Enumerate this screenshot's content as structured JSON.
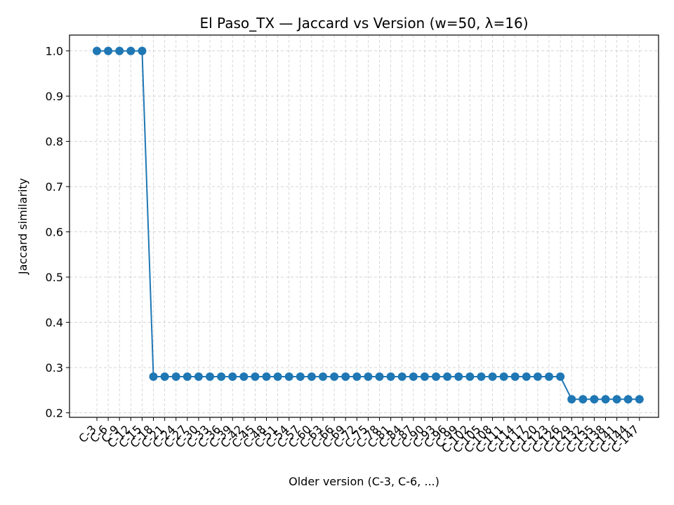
{
  "chart_data": {
    "type": "line",
    "title": "El Paso_TX — Jaccard vs Version (w=50, λ=16)",
    "xlabel": "Older version (C-3, C-6, ...)",
    "ylabel": "Jaccard similarity",
    "ylim": [
      0.19,
      1.035
    ],
    "yticks": [
      0.2,
      0.3,
      0.4,
      0.5,
      0.6,
      0.7,
      0.8,
      0.9,
      1.0
    ],
    "grid": true,
    "color": "#1f77b4",
    "categories": [
      "C-3",
      "C-6",
      "C-9",
      "C-12",
      "C-15",
      "C-18",
      "C-21",
      "C-24",
      "C-27",
      "C-30",
      "C-33",
      "C-36",
      "C-39",
      "C-42",
      "C-45",
      "C-48",
      "C-51",
      "C-54",
      "C-57",
      "C-60",
      "C-63",
      "C-66",
      "C-69",
      "C-72",
      "C-75",
      "C-78",
      "C-81",
      "C-84",
      "C-87",
      "C-90",
      "C-93",
      "C-96",
      "C-99",
      "C-102",
      "C-105",
      "C-108",
      "C-111",
      "C-114",
      "C-117",
      "C-120",
      "C-123",
      "C-126",
      "C-129",
      "C-132",
      "C-135",
      "C-138",
      "C-141",
      "C-144",
      "C-147"
    ],
    "values": [
      1.0,
      1.0,
      1.0,
      1.0,
      1.0,
      0.28,
      0.28,
      0.28,
      0.28,
      0.28,
      0.28,
      0.28,
      0.28,
      0.28,
      0.28,
      0.28,
      0.28,
      0.28,
      0.28,
      0.28,
      0.28,
      0.28,
      0.28,
      0.28,
      0.28,
      0.28,
      0.28,
      0.28,
      0.28,
      0.28,
      0.28,
      0.28,
      0.28,
      0.28,
      0.28,
      0.28,
      0.28,
      0.28,
      0.28,
      0.28,
      0.28,
      0.28,
      0.23,
      0.23,
      0.23,
      0.23,
      0.23,
      0.23,
      0.23
    ]
  }
}
